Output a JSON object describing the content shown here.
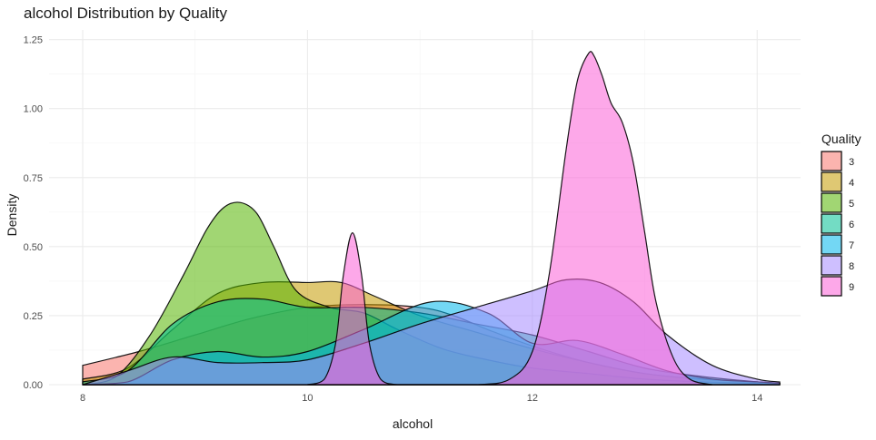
{
  "chart_data": {
    "type": "area",
    "title": "alcohol Distribution by Quality",
    "xlabel": "alcohol",
    "ylabel": "Density",
    "xlim": [
      8,
      14.2
    ],
    "ylim": [
      0,
      1.25
    ],
    "x_ticks": [
      8,
      10,
      12,
      14
    ],
    "y_ticks": [
      0.0,
      0.25,
      0.5,
      0.75,
      1.0,
      1.25
    ],
    "x_tick_labels": [
      "8",
      "10",
      "12",
      "14"
    ],
    "y_tick_labels": [
      "0.00",
      "0.25",
      "0.50",
      "0.75",
      "1.00",
      "1.25"
    ],
    "grid": true,
    "legend": {
      "title": "Quality",
      "position": "right"
    },
    "series": [
      {
        "name": "3",
        "color": "#F8766D",
        "x": [
          8.0,
          8.5,
          9.0,
          9.5,
          10.0,
          10.5,
          11.0,
          11.3,
          11.6,
          12.0,
          12.5,
          13.0,
          13.5,
          14.0,
          14.2
        ],
        "y": [
          0.07,
          0.12,
          0.18,
          0.24,
          0.28,
          0.29,
          0.28,
          0.25,
          0.2,
          0.14,
          0.08,
          0.04,
          0.02,
          0.01,
          0.005
        ]
      },
      {
        "name": "4",
        "color": "#C49A00",
        "x": [
          8.0,
          8.4,
          8.8,
          9.2,
          9.6,
          10.0,
          10.3,
          10.6,
          11.0,
          11.5,
          12.0,
          12.5,
          13.0,
          13.5,
          14.0,
          14.2
        ],
        "y": [
          0.02,
          0.06,
          0.2,
          0.33,
          0.37,
          0.37,
          0.37,
          0.32,
          0.25,
          0.19,
          0.13,
          0.08,
          0.04,
          0.02,
          0.01,
          0.005
        ]
      },
      {
        "name": "5",
        "color": "#53B400",
        "x": [
          8.0,
          8.3,
          8.6,
          8.9,
          9.1,
          9.25,
          9.4,
          9.55,
          9.7,
          9.9,
          10.2,
          10.5,
          10.8,
          11.2,
          11.6,
          12.0,
          12.5,
          13.0,
          13.5,
          14.0,
          14.2
        ],
        "y": [
          0.0,
          0.03,
          0.18,
          0.4,
          0.56,
          0.64,
          0.66,
          0.62,
          0.5,
          0.34,
          0.28,
          0.26,
          0.2,
          0.13,
          0.09,
          0.06,
          0.04,
          0.02,
          0.01,
          0.005,
          0.0
        ]
      },
      {
        "name": "6",
        "color": "#00C094",
        "x": [
          8.0,
          8.4,
          8.8,
          9.2,
          9.6,
          10.0,
          10.5,
          11.0,
          11.5,
          12.0,
          12.5,
          13.0,
          13.5,
          14.0,
          14.2
        ],
        "y": [
          0.01,
          0.05,
          0.22,
          0.3,
          0.31,
          0.28,
          0.28,
          0.26,
          0.22,
          0.18,
          0.12,
          0.06,
          0.03,
          0.01,
          0.005
        ]
      },
      {
        "name": "7",
        "color": "#00B6EB",
        "x": [
          8.0,
          8.4,
          8.8,
          9.2,
          9.6,
          10.0,
          10.5,
          11.1,
          11.6,
          12.0,
          12.4,
          12.8,
          13.2,
          13.6,
          14.0,
          14.2
        ],
        "y": [
          0.0,
          0.01,
          0.09,
          0.12,
          0.1,
          0.12,
          0.2,
          0.3,
          0.26,
          0.15,
          0.16,
          0.11,
          0.05,
          0.02,
          0.01,
          0.005
        ]
      },
      {
        "name": "8",
        "color": "#A58AFF",
        "x": [
          8.0,
          8.4,
          8.8,
          9.2,
          9.6,
          10.0,
          10.5,
          11.0,
          11.5,
          12.0,
          12.3,
          12.6,
          12.9,
          13.2,
          13.6,
          14.0,
          14.2
        ],
        "y": [
          0.0,
          0.05,
          0.1,
          0.08,
          0.08,
          0.09,
          0.15,
          0.22,
          0.28,
          0.34,
          0.38,
          0.37,
          0.3,
          0.18,
          0.07,
          0.02,
          0.01
        ]
      },
      {
        "name": "9",
        "color": "#FB61D7",
        "x": [
          10.0,
          10.15,
          10.25,
          10.32,
          10.4,
          10.48,
          10.55,
          10.65,
          10.8,
          11.0,
          11.5,
          11.8,
          12.0,
          12.15,
          12.3,
          12.4,
          12.5,
          12.55,
          12.62,
          12.7,
          12.8,
          12.9,
          13.0,
          13.1,
          13.25,
          13.4,
          13.6
        ],
        "y": [
          0.0,
          0.02,
          0.15,
          0.4,
          0.55,
          0.4,
          0.15,
          0.02,
          0.0,
          0.0,
          0.0,
          0.02,
          0.12,
          0.4,
          0.85,
          1.1,
          1.2,
          1.19,
          1.12,
          1.02,
          0.95,
          0.8,
          0.55,
          0.3,
          0.1,
          0.02,
          0.0
        ]
      }
    ]
  }
}
